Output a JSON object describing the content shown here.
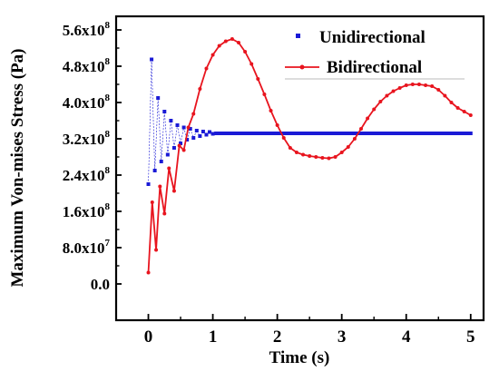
{
  "chart_data": {
    "type": "line",
    "title": "",
    "xlabel": "Time (s)",
    "ylabel": "Maximum Von-mises Stress (Pa)",
    "xlim": [
      -0.5,
      5.2
    ],
    "ylim": [
      -80000000.0,
      590000000.0
    ],
    "x_ticks": [
      0,
      1,
      2,
      3,
      4,
      5
    ],
    "x_tick_labels": [
      "0",
      "1",
      "2",
      "3",
      "4",
      "5"
    ],
    "y_ticks": [
      0,
      80000000.0,
      160000000.0,
      240000000.0,
      320000000.0,
      400000000.0,
      480000000.0,
      560000000.0
    ],
    "y_tick_labels": [
      {
        "mantissa": "0.0",
        "exponent": ""
      },
      {
        "mantissa": "8.0x10",
        "exponent": "7"
      },
      {
        "mantissa": "1.6x10",
        "exponent": "8"
      },
      {
        "mantissa": "2.4x10",
        "exponent": "8"
      },
      {
        "mantissa": "3.2x10",
        "exponent": "8"
      },
      {
        "mantissa": "4.0x10",
        "exponent": "8"
      },
      {
        "mantissa": "4.8x10",
        "exponent": "8"
      },
      {
        "mantissa": "5.6x10",
        "exponent": "8"
      }
    ],
    "grid": false,
    "legend_position": "top-right",
    "series": [
      {
        "name": "Unidirectional",
        "color": "#1a1ad6",
        "marker": "square",
        "line": "thin-dashed",
        "steady_value": 332000000.0,
        "x": [
          0.0,
          0.05,
          0.1,
          0.15,
          0.2,
          0.25,
          0.3,
          0.35,
          0.4,
          0.45,
          0.5,
          0.55,
          0.6,
          0.65,
          0.7,
          0.75,
          0.8,
          0.85,
          0.9,
          0.95,
          1.0
        ],
        "y": [
          220000000.0,
          495000000.0,
          250000000.0,
          410000000.0,
          270000000.0,
          380000000.0,
          285000000.0,
          360000000.0,
          300000000.0,
          350000000.0,
          310000000.0,
          345000000.0,
          318000000.0,
          342000000.0,
          322000000.0,
          338000000.0,
          326000000.0,
          336000000.0,
          329000000.0,
          335000000.0,
          331000000.0
        ]
      },
      {
        "name": "Bidirectional",
        "color": "#e8141e",
        "marker": "circle",
        "line": "solid",
        "x": [
          0.0,
          0.06,
          0.12,
          0.18,
          0.25,
          0.32,
          0.4,
          0.48,
          0.55,
          0.62,
          0.7,
          0.8,
          0.9,
          1.0,
          1.1,
          1.2,
          1.3,
          1.4,
          1.5,
          1.6,
          1.7,
          1.8,
          1.9,
          2.0,
          2.1,
          2.2,
          2.3,
          2.4,
          2.5,
          2.6,
          2.7,
          2.8,
          2.9,
          3.0,
          3.1,
          3.2,
          3.3,
          3.4,
          3.5,
          3.6,
          3.7,
          3.8,
          3.9,
          4.0,
          4.1,
          4.2,
          4.3,
          4.4,
          4.5,
          4.6,
          4.7,
          4.8,
          4.9,
          5.0
        ],
        "y": [
          25000000.0,
          180000000.0,
          75000000.0,
          215000000.0,
          155000000.0,
          255000000.0,
          205000000.0,
          305000000.0,
          295000000.0,
          345000000.0,
          375000000.0,
          430000000.0,
          475000000.0,
          505000000.0,
          525000000.0,
          535000000.0,
          540000000.0,
          532000000.0,
          512000000.0,
          485000000.0,
          452000000.0,
          418000000.0,
          382000000.0,
          350000000.0,
          322000000.0,
          300000000.0,
          290000000.0,
          285000000.0,
          282000000.0,
          280000000.0,
          278000000.0,
          277000000.0,
          280000000.0,
          290000000.0,
          302000000.0,
          320000000.0,
          342000000.0,
          365000000.0,
          385000000.0,
          402000000.0,
          415000000.0,
          425000000.0,
          432000000.0,
          438000000.0,
          440000000.0,
          440000000.0,
          438000000.0,
          436000000.0,
          428000000.0,
          415000000.0,
          400000000.0,
          388000000.0,
          380000000.0,
          372000000.0
        ]
      }
    ]
  }
}
